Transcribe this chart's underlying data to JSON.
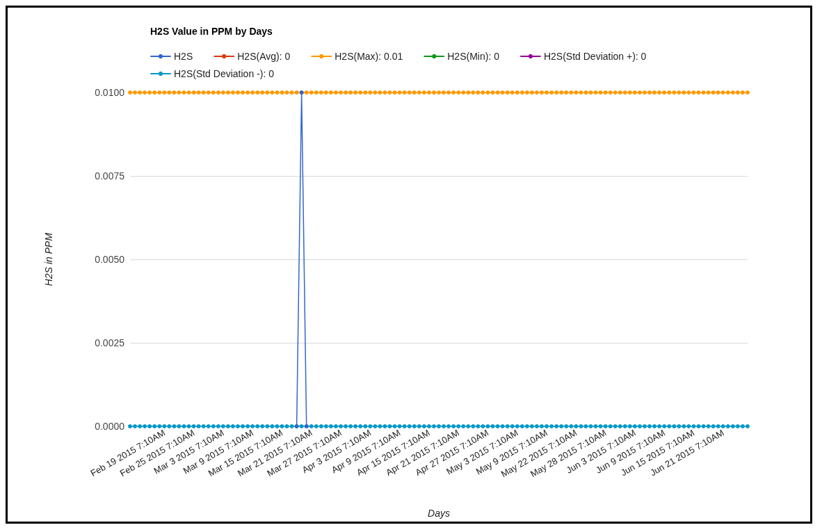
{
  "chart_data": {
    "type": "line",
    "title": "H2S Value in PPM by Days",
    "xlabel": "Days",
    "ylabel": "H2S in PPM",
    "categories": [
      null,
      null,
      null,
      null,
      null,
      null,
      null,
      "Feb 19 2015 7:10AM",
      null,
      null,
      null,
      null,
      null,
      "Feb 25 2015 7:10AM",
      null,
      null,
      null,
      null,
      null,
      "Mar 3 2015 7:10AM",
      null,
      null,
      null,
      null,
      null,
      "Mar 9 2015 7:10AM",
      null,
      null,
      null,
      null,
      null,
      "Mar 15 2015 7:10AM",
      null,
      null,
      null,
      null,
      null,
      "Mar 21 2015 7:10AM",
      null,
      null,
      null,
      null,
      null,
      "Mar 27 2015 7:10AM",
      null,
      null,
      null,
      null,
      null,
      "Apr 3 2015 7:10AM",
      null,
      null,
      null,
      null,
      null,
      "Apr 9 2015 7:10AM",
      null,
      null,
      null,
      null,
      null,
      "Apr 15 2015 7:10AM",
      null,
      null,
      null,
      null,
      null,
      "Apr 21 2015 7:10AM",
      null,
      null,
      null,
      null,
      null,
      "Apr 27 2015 7:10AM",
      null,
      null,
      null,
      null,
      null,
      "May 3 2015 7:10AM",
      null,
      null,
      null,
      null,
      null,
      "May 9 2015 7:10AM",
      null,
      null,
      null,
      null,
      null,
      "May 22 2015 7:10AM",
      null,
      null,
      null,
      null,
      null,
      "May 28 2015 7:10AM",
      null,
      null,
      null,
      null,
      null,
      "Jun 3 2015 7:10AM",
      null,
      null,
      null,
      null,
      null,
      "Jun 9 2015 7:10AM",
      null,
      null,
      null,
      null,
      null,
      "Jun 15 2015 7:10AM",
      null,
      null,
      null,
      null,
      null,
      "Jun 21 2015 7:10AM",
      null,
      null,
      null,
      null,
      null
    ],
    "series": [
      {
        "name": "H2S",
        "color": "#3366cc",
        "values": [
          null,
          null,
          null,
          null,
          null,
          null,
          null,
          null,
          null,
          null,
          null,
          null,
          null,
          null,
          null,
          null,
          null,
          null,
          null,
          null,
          null,
          null,
          null,
          null,
          null,
          null,
          null,
          null,
          null,
          null,
          null,
          null,
          null,
          null,
          0,
          0.01,
          0,
          null,
          null,
          null,
          null,
          null,
          null,
          null,
          null,
          null,
          null,
          null,
          null,
          null,
          null,
          null,
          null,
          null,
          null,
          null,
          null,
          null,
          null,
          null,
          null,
          null,
          null,
          null,
          null,
          null,
          null,
          null,
          null,
          null,
          null,
          null,
          null,
          null,
          null,
          null,
          null,
          null,
          null,
          null,
          null,
          null,
          null,
          null,
          null,
          null,
          null,
          null,
          null,
          null,
          null,
          null,
          null,
          null,
          null,
          null,
          null,
          null,
          null,
          null,
          null,
          null,
          null,
          null,
          null,
          null,
          null,
          null,
          null,
          null,
          null,
          null,
          null,
          null,
          null,
          null,
          null,
          null,
          null,
          null,
          null,
          null,
          null,
          null,
          null,
          null,
          null
        ]
      },
      {
        "name": "H2S(Avg): 0",
        "color": "#dc3912",
        "values": [
          null,
          null,
          null,
          null,
          null,
          null,
          null,
          null,
          null,
          null,
          null,
          null,
          null,
          null,
          null,
          null,
          null,
          null,
          null,
          null,
          null,
          null,
          null,
          null,
          null,
          null,
          null,
          null,
          null,
          null,
          null,
          null,
          null,
          null,
          null,
          null,
          null,
          null,
          null,
          null,
          null,
          null,
          null,
          null,
          null,
          null,
          null,
          null,
          null,
          null,
          null,
          null,
          null,
          null,
          null,
          null,
          null,
          null,
          null,
          null,
          null,
          null,
          null,
          null,
          null,
          null,
          null,
          null,
          null,
          null,
          null,
          null,
          null,
          null,
          null,
          null,
          null,
          null,
          null,
          null,
          null,
          null,
          null,
          null,
          null,
          null,
          null,
          null,
          null,
          null,
          null,
          null,
          null,
          null,
          null,
          null,
          null,
          null,
          null,
          null,
          null,
          null,
          null,
          null,
          null,
          null,
          null,
          null,
          null,
          null,
          null,
          null,
          null,
          null,
          null,
          null,
          null,
          null,
          null,
          null,
          null,
          null,
          null,
          null,
          null,
          null,
          null
        ]
      },
      {
        "name": "H2S(Max): 0.01",
        "color": "#ff9900",
        "values": [
          0.01,
          0.01,
          0.01,
          0.01,
          0.01,
          0.01,
          0.01,
          0.01,
          0.01,
          0.01,
          0.01,
          0.01,
          0.01,
          0.01,
          0.01,
          0.01,
          0.01,
          0.01,
          0.01,
          0.01,
          0.01,
          0.01,
          0.01,
          0.01,
          0.01,
          0.01,
          0.01,
          0.01,
          0.01,
          0.01,
          0.01,
          0.01,
          0.01,
          0.01,
          0.01,
          0.01,
          0.01,
          0.01,
          0.01,
          0.01,
          0.01,
          0.01,
          0.01,
          0.01,
          0.01,
          0.01,
          0.01,
          0.01,
          0.01,
          0.01,
          0.01,
          0.01,
          0.01,
          0.01,
          0.01,
          0.01,
          0.01,
          0.01,
          0.01,
          0.01,
          0.01,
          0.01,
          0.01,
          0.01,
          0.01,
          0.01,
          0.01,
          0.01,
          0.01,
          0.01,
          0.01,
          0.01,
          0.01,
          0.01,
          0.01,
          0.01,
          0.01,
          0.01,
          0.01,
          0.01,
          0.01,
          0.01,
          0.01,
          0.01,
          0.01,
          0.01,
          0.01,
          0.01,
          0.01,
          0.01,
          0.01,
          0.01,
          0.01,
          0.01,
          0.01,
          0.01,
          0.01,
          0.01,
          0.01,
          0.01,
          0.01,
          0.01,
          0.01,
          0.01,
          0.01,
          0.01,
          0.01,
          0.01,
          0.01,
          0.01,
          0.01,
          0.01,
          0.01,
          0.01,
          0.01,
          0.01,
          0.01,
          0.01,
          0.01,
          0.01,
          0.01,
          0.01,
          0.01,
          0.01,
          0.01,
          0.01,
          0.01
        ]
      },
      {
        "name": "H2S(Min): 0",
        "color": "#109618",
        "values": [
          null,
          null,
          null,
          null,
          null,
          null,
          null,
          null,
          null,
          null,
          null,
          null,
          null,
          null,
          null,
          null,
          null,
          null,
          null,
          null,
          null,
          null,
          null,
          null,
          null,
          null,
          null,
          null,
          null,
          null,
          null,
          null,
          null,
          null,
          null,
          null,
          null,
          null,
          null,
          null,
          null,
          null,
          null,
          null,
          null,
          null,
          null,
          null,
          null,
          null,
          null,
          null,
          null,
          null,
          null,
          null,
          null,
          null,
          null,
          null,
          null,
          null,
          null,
          null,
          null,
          null,
          null,
          null,
          null,
          null,
          null,
          null,
          null,
          null,
          null,
          null,
          null,
          null,
          null,
          null,
          null,
          null,
          null,
          null,
          null,
          null,
          null,
          null,
          null,
          null,
          null,
          null,
          null,
          null,
          null,
          null,
          null,
          null,
          null,
          null,
          null,
          null,
          null,
          null,
          null,
          null,
          null,
          null,
          null,
          null,
          null,
          null,
          null,
          null,
          null,
          null,
          null,
          null,
          null,
          null,
          null,
          null,
          null,
          null,
          null,
          null,
          null
        ]
      },
      {
        "name": "H2S(Std Deviation +): 0",
        "color": "#990099",
        "values": [
          null,
          null,
          null,
          null,
          null,
          null,
          null,
          null,
          null,
          null,
          null,
          null,
          null,
          null,
          null,
          null,
          null,
          null,
          null,
          null,
          null,
          null,
          null,
          null,
          null,
          null,
          null,
          null,
          null,
          null,
          null,
          null,
          null,
          null,
          null,
          null,
          null,
          null,
          null,
          null,
          null,
          null,
          null,
          null,
          null,
          null,
          null,
          null,
          null,
          null,
          null,
          null,
          null,
          null,
          null,
          null,
          null,
          null,
          null,
          null,
          null,
          null,
          null,
          null,
          null,
          null,
          null,
          null,
          null,
          null,
          null,
          null,
          null,
          null,
          null,
          null,
          null,
          null,
          null,
          null,
          null,
          null,
          null,
          null,
          null,
          null,
          null,
          null,
          null,
          null,
          null,
          null,
          null,
          null,
          null,
          null,
          null,
          null,
          null,
          null,
          null,
          null,
          null,
          null,
          null,
          null,
          null,
          null,
          null,
          null,
          null,
          null,
          null,
          null,
          null,
          null,
          null,
          null,
          null,
          null,
          null,
          null,
          null,
          null,
          null,
          null,
          null
        ]
      },
      {
        "name": "H2S(Std Deviation -): 0",
        "color": "#0099c6",
        "values": [
          0,
          0,
          0,
          0,
          0,
          0,
          0,
          0,
          0,
          0,
          0,
          0,
          0,
          0,
          0,
          0,
          0,
          0,
          0,
          0,
          0,
          0,
          0,
          0,
          0,
          0,
          0,
          0,
          0,
          0,
          0,
          0,
          0,
          0,
          0,
          0,
          0,
          0,
          0,
          0,
          0,
          0,
          0,
          0,
          0,
          0,
          0,
          0,
          0,
          0,
          0,
          0,
          0,
          0,
          0,
          0,
          0,
          0,
          0,
          0,
          0,
          0,
          0,
          0,
          0,
          0,
          0,
          0,
          0,
          0,
          0,
          0,
          0,
          0,
          0,
          0,
          0,
          0,
          0,
          0,
          0,
          0,
          0,
          0,
          0,
          0,
          0,
          0,
          0,
          0,
          0,
          0,
          0,
          0,
          0,
          0,
          0,
          0,
          0,
          0,
          0,
          0,
          0,
          0,
          0,
          0,
          0,
          0,
          0,
          0,
          0,
          0,
          0,
          0,
          0,
          0,
          0,
          0,
          0,
          0,
          0,
          0,
          0,
          0,
          0,
          0,
          0
        ]
      }
    ],
    "ylim": [
      0,
      0.01
    ],
    "yticks": [
      {
        "value": 0,
        "label": "0.0000"
      },
      {
        "value": 0.0025,
        "label": "0.0025"
      },
      {
        "value": 0.005,
        "label": "0.0050"
      },
      {
        "value": 0.0075,
        "label": "0.0075"
      },
      {
        "value": 0.01,
        "label": "0.0100"
      }
    ],
    "grid": "y",
    "legend": "top left",
    "marker": "circle",
    "line_style": "solid"
  }
}
